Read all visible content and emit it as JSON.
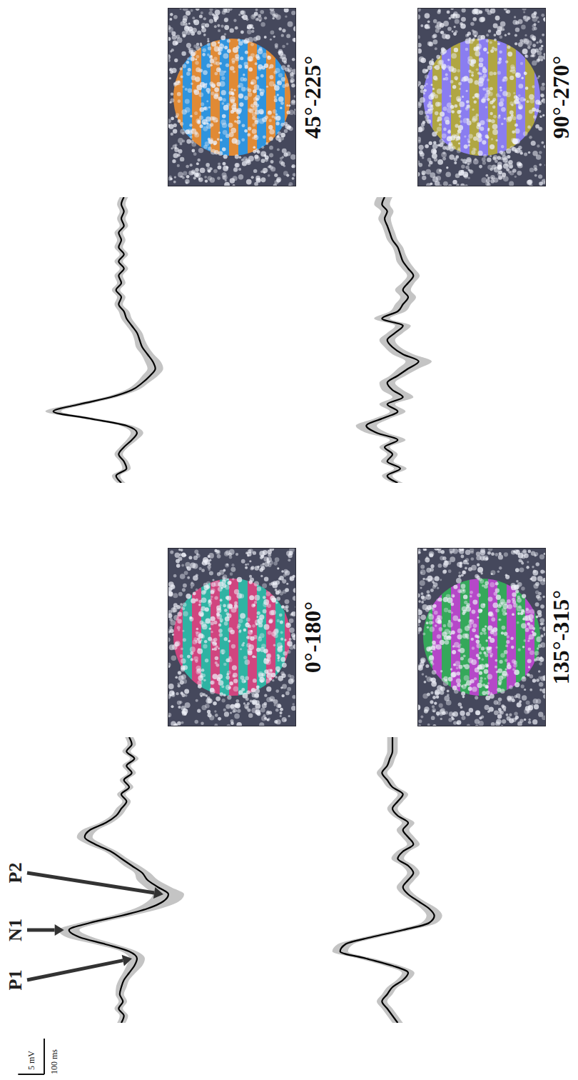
{
  "chart_data": [
    {
      "type": "line",
      "title": "0°-180°",
      "x": [
        -100,
        -80,
        -60,
        -40,
        -20,
        0,
        20,
        40,
        60,
        80,
        100,
        120,
        140,
        160,
        180,
        200,
        220,
        240,
        260,
        280,
        300,
        320,
        340,
        360,
        380,
        400,
        420,
        440,
        460,
        480,
        500,
        520,
        540,
        560,
        580,
        600,
        620,
        640,
        660,
        680,
        700
      ],
      "values": [
        0,
        0.5,
        -0.5,
        0.3,
        -0.3,
        0,
        0.5,
        1.5,
        2.5,
        3,
        1.5,
        -3,
        -8,
        -10,
        -6,
        0,
        5,
        8,
        9,
        7,
        5,
        4,
        2,
        0,
        -2,
        -5,
        -7,
        -6,
        -3,
        -1,
        0,
        1,
        0,
        1.5,
        0.5,
        2,
        1,
        2.5,
        1,
        2,
        1.5
      ],
      "error": [
        0.8,
        0.8,
        0.8,
        0.8,
        0.8,
        1,
        1,
        1.2,
        1.5,
        1.5,
        1.5,
        2,
        2.5,
        2,
        2,
        2,
        2.5,
        3,
        3,
        2.5,
        2,
        1.5,
        1.5,
        1.2,
        1.2,
        1.5,
        1.5,
        1.5,
        1.2,
        1,
        1,
        0.8,
        0.8,
        0.8,
        0.8,
        0.8,
        0.8,
        0.8,
        0.8,
        0.8,
        0.8
      ],
      "color": "#000000",
      "xlim": [
        -100,
        700
      ],
      "ylim": [
        -15,
        15
      ],
      "tick_labels": false,
      "annotations": [
        {
          "text": "P1",
          "x": 80,
          "y": 3
        },
        {
          "text": "N1",
          "x": 160,
          "y": -10
        },
        {
          "text": "P2",
          "x": 260,
          "y": 9
        }
      ]
    },
    {
      "type": "line",
      "title": "90°-270°",
      "x": [
        -100,
        -80,
        -60,
        -40,
        -20,
        0,
        20,
        40,
        60,
        80,
        100,
        120,
        140,
        160,
        180,
        200,
        220,
        240,
        260,
        280,
        300,
        320,
        340,
        360,
        380,
        400,
        420,
        440,
        460,
        480,
        500,
        520,
        540,
        560,
        580,
        600,
        620,
        640,
        660,
        680,
        700
      ],
      "values": [
        1,
        -1,
        1.5,
        -1,
        0,
        -1.5,
        1,
        -3,
        -5,
        -2,
        1,
        -1,
        2,
        0,
        -1,
        1,
        3,
        5,
        2,
        0,
        -1,
        0.5,
        2,
        -2,
        1,
        2,
        3,
        2,
        3,
        4,
        3,
        2,
        1.5,
        1,
        0,
        -0.5,
        -1,
        -1.5,
        -1,
        -2,
        -1.5
      ],
      "error": [
        1,
        1,
        1.2,
        1.2,
        1,
        1,
        1.5,
        2,
        2,
        1.5,
        1.5,
        1.5,
        2,
        2,
        1.5,
        1.5,
        2,
        2.5,
        2,
        1.5,
        1.5,
        1.5,
        1.5,
        1.5,
        1.5,
        1.5,
        1.5,
        1.5,
        1.2,
        1.2,
        1.2,
        1.2,
        1,
        1,
        1,
        1,
        1,
        1.2,
        1.2,
        1.5,
        1.5
      ],
      "color": "#000000",
      "xlim": [
        -100,
        700
      ],
      "ylim": [
        -15,
        15
      ],
      "tick_labels": false
    },
    {
      "type": "line",
      "title": "45°-225°",
      "x": [
        -100,
        -80,
        -60,
        -40,
        -20,
        0,
        20,
        40,
        60,
        80,
        100,
        120,
        140,
        160,
        180,
        200,
        220,
        240,
        260,
        280,
        300,
        320,
        340,
        360,
        380,
        400,
        420,
        440,
        460,
        480,
        500,
        520,
        540,
        560,
        580,
        600,
        620,
        640,
        660,
        680,
        700
      ],
      "values": [
        0,
        -1,
        1,
        0.5,
        -0.5,
        0.5,
        2,
        3,
        1,
        -6,
        -13,
        -8,
        -2,
        2,
        4,
        5.5,
        6.5,
        6,
        5,
        4,
        3.5,
        3,
        2,
        1,
        0.5,
        -0.5,
        0,
        -1,
        0,
        -0.5,
        0.5,
        -0.5,
        0.5,
        -0.5,
        0,
        -0.5,
        0.5,
        0,
        0.5,
        0,
        0.5
      ],
      "error": [
        0.8,
        0.8,
        0.8,
        0.8,
        0.8,
        0.8,
        1,
        1.2,
        1.2,
        1.5,
        1.5,
        1.5,
        1.2,
        1.2,
        1.2,
        1.5,
        1.5,
        1.5,
        1.2,
        1.2,
        1,
        1,
        1,
        1,
        1,
        0.8,
        0.8,
        0.8,
        0.8,
        0.8,
        0.8,
        0.8,
        0.8,
        0.8,
        0.8,
        0.8,
        0.8,
        0.8,
        0.8,
        0.8,
        0.8
      ],
      "color": "#000000",
      "xlim": [
        -100,
        700
      ],
      "ylim": [
        -15,
        15
      ],
      "tick_labels": false
    },
    {
      "type": "line",
      "title": "135°-315°",
      "x": [
        -100,
        -80,
        -60,
        -40,
        -20,
        0,
        20,
        40,
        60,
        80,
        100,
        120,
        140,
        160,
        180,
        200,
        220,
        240,
        260,
        280,
        300,
        320,
        340,
        360,
        380,
        400,
        420,
        440,
        460,
        480,
        500,
        520,
        540,
        560,
        580,
        600,
        620,
        640,
        660,
        680,
        700
      ],
      "values": [
        1,
        0,
        -1,
        -2,
        -1,
        0,
        2,
        3,
        0,
        -5,
        -10,
        -9,
        -4,
        2,
        7,
        8,
        7,
        5,
        3,
        2,
        3,
        4,
        3,
        1,
        2,
        4,
        3,
        2,
        3,
        1,
        0,
        1,
        2,
        0,
        -1,
        -2,
        -1,
        -0.5,
        0,
        0,
        0
      ],
      "error": [
        1,
        1,
        1,
        1,
        1,
        1,
        1.2,
        1.2,
        1.5,
        1.5,
        1.5,
        1.5,
        1.5,
        1.5,
        1.5,
        1.5,
        1.5,
        1.2,
        1.2,
        1.2,
        1.2,
        1.2,
        1.2,
        1.2,
        1.2,
        1.2,
        1.2,
        1.2,
        1.2,
        1,
        1,
        1,
        1,
        1,
        1,
        1,
        1,
        1,
        1,
        1,
        1
      ],
      "color": "#000000",
      "xlim": [
        -100,
        700
      ],
      "ylim": [
        -15,
        15
      ],
      "tick_labels": false
    }
  ],
  "scale_bar": {
    "x": {
      "value": 100,
      "label": "100 ms"
    },
    "y": {
      "value": 5,
      "label": "5 mV"
    }
  }
}
